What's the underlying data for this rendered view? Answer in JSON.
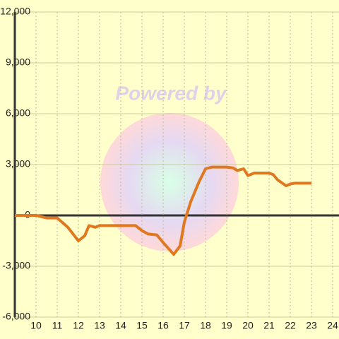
{
  "chart_data": {
    "type": "line",
    "watermark": "Powered by",
    "x": [
      9,
      10,
      10.5,
      11,
      11.5,
      12,
      12.3,
      12.5,
      12.8,
      13,
      14,
      14.7,
      15,
      15.3,
      15.7,
      16,
      16.5,
      16.8,
      17,
      17.3,
      17.7,
      18,
      18.3,
      19,
      19.3,
      19.5,
      19.8,
      20,
      20.3,
      21,
      21.2,
      21.4,
      21.8,
      22,
      22.2,
      23
    ],
    "series": [
      {
        "color": "#e07820",
        "values": [
          0,
          0,
          -150,
          -150,
          -700,
          -1500,
          -1200,
          -600,
          -700,
          -600,
          -600,
          -600,
          -900,
          -1100,
          -1150,
          -1600,
          -2300,
          -1800,
          -400,
          800,
          2000,
          2750,
          2850,
          2850,
          2800,
          2650,
          2750,
          2350,
          2500,
          2500,
          2400,
          2100,
          1750,
          1850,
          1900,
          1900
        ]
      }
    ],
    "xlim": [
      9,
      24.3
    ],
    "ylim": [
      -6000,
      12000
    ],
    "xticks": [
      10,
      11,
      12,
      13,
      14,
      15,
      16,
      17,
      18,
      19,
      20,
      21,
      22,
      23,
      24
    ],
    "yticks": [
      {
        "value": -6000,
        "label": "-6,000"
      },
      {
        "value": -3000,
        "label": "-3,000"
      },
      0,
      {
        "value": 3000,
        "label": "3,000"
      },
      {
        "value": 6000,
        "label": "6,000"
      },
      {
        "value": 9000,
        "label": "9,000"
      },
      {
        "value": 12000,
        "label": "12,000"
      }
    ],
    "grid": true
  }
}
